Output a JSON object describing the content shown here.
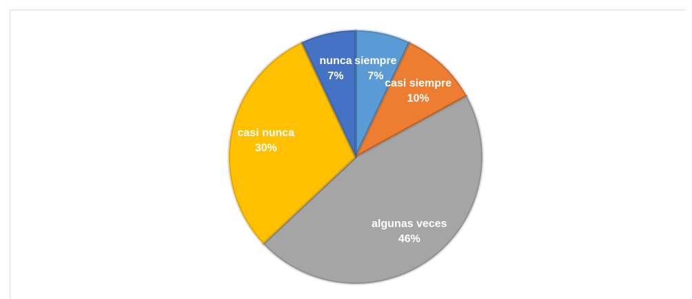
{
  "chart_data": {
    "type": "pie",
    "categories": [
      "siempre",
      "casi siempre",
      "algunas veces",
      "casi nunca",
      "nunca"
    ],
    "values": [
      7,
      10,
      46,
      30,
      7
    ],
    "value_labels": [
      "7%",
      "10%",
      "46%",
      "30%",
      "7%"
    ],
    "colors": [
      "#5b9bd5",
      "#ed7d31",
      "#a5a5a5",
      "#ffc000",
      "#4472c4"
    ]
  }
}
